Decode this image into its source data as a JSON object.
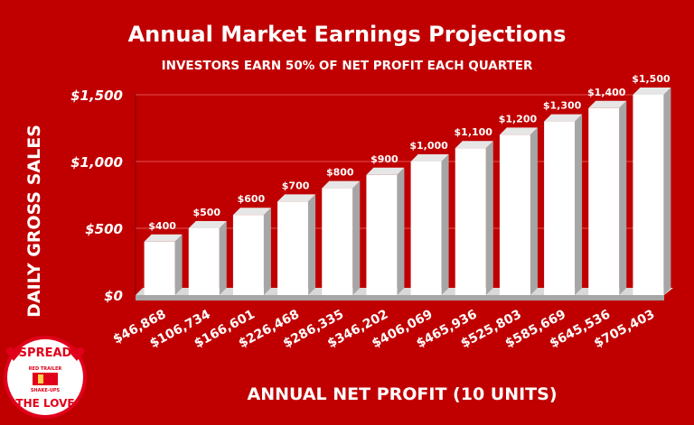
{
  "chart_data": {
    "type": "bar",
    "title": "Annual Market Earnings Projections",
    "subtitle": "INVESTORS EARN 50% OF NET PROFIT EACH QUARTER",
    "xlabel": "ANNUAL NET PROFIT (10 UNITS)",
    "ylabel": "DAILY GROSS SALES",
    "ylim": [
      0,
      1500
    ],
    "yticks": [
      "$0",
      "$500",
      "$1,000",
      "$1,500"
    ],
    "ytick_values": [
      0,
      500,
      1000,
      1500
    ],
    "categories": [
      "$46,868",
      "$106,734",
      "$166,601",
      "$226,468",
      "$286,335",
      "$346,202",
      "$406,069",
      "$465,936",
      "$525,803",
      "$585,669",
      "$645,536",
      "$705,403"
    ],
    "values": [
      400,
      500,
      600,
      700,
      800,
      900,
      1000,
      1100,
      1200,
      1300,
      1400,
      1500
    ],
    "data_labels": [
      "$400",
      "$500",
      "$600",
      "$700",
      "$800",
      "$900",
      "$1,000",
      "$1,100",
      "$1,200",
      "$1,300",
      "$1,400",
      "$1,500"
    ],
    "grid": true,
    "legend": "none",
    "colors": {
      "background": "#c00000",
      "bar": "#ffffff",
      "bar_side": "#a6a6a6",
      "text": "#ffffff"
    }
  },
  "logo": {
    "text_top": "SPREAD",
    "text_bottom": "THE LOVE",
    "inner_top": "RED TRAILER",
    "inner_bottom": "SHAKE-UPS",
    "colors": {
      "ring": "#e0001a",
      "fill": "#ffffff"
    }
  }
}
